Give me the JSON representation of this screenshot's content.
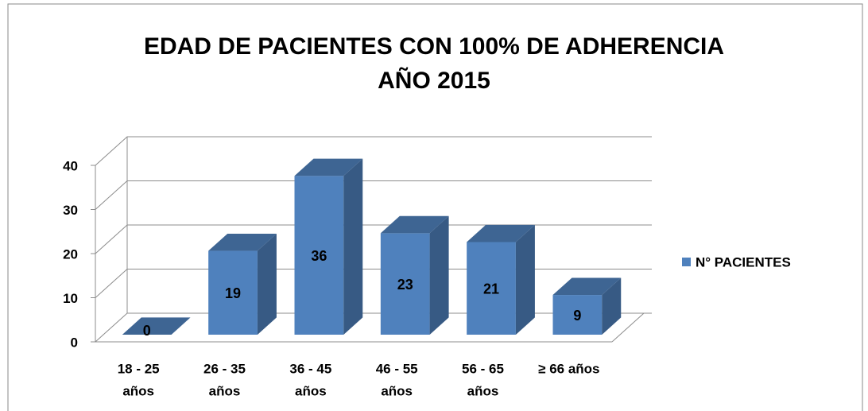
{
  "chart_data": {
    "type": "bar3d",
    "title": [
      "EDAD DE PACIENTES CON 100% DE ADHERENCIA",
      "AÑO 2015"
    ],
    "categories": [
      [
        "18 - 25",
        "años"
      ],
      [
        "26 - 35",
        "años"
      ],
      [
        "36 - 45",
        "años"
      ],
      [
        "46 - 55",
        "años"
      ],
      [
        "56 - 65",
        "años"
      ],
      [
        "≥ 66 años"
      ]
    ],
    "series": [
      {
        "name": "N° PACIENTES",
        "color": "#4f81bd",
        "values": [
          0,
          19,
          36,
          23,
          21,
          9
        ]
      }
    ],
    "ylim": [
      0,
      40
    ],
    "yticks": [
      0,
      10,
      20,
      30,
      40
    ],
    "grid": true,
    "legend": "right"
  }
}
